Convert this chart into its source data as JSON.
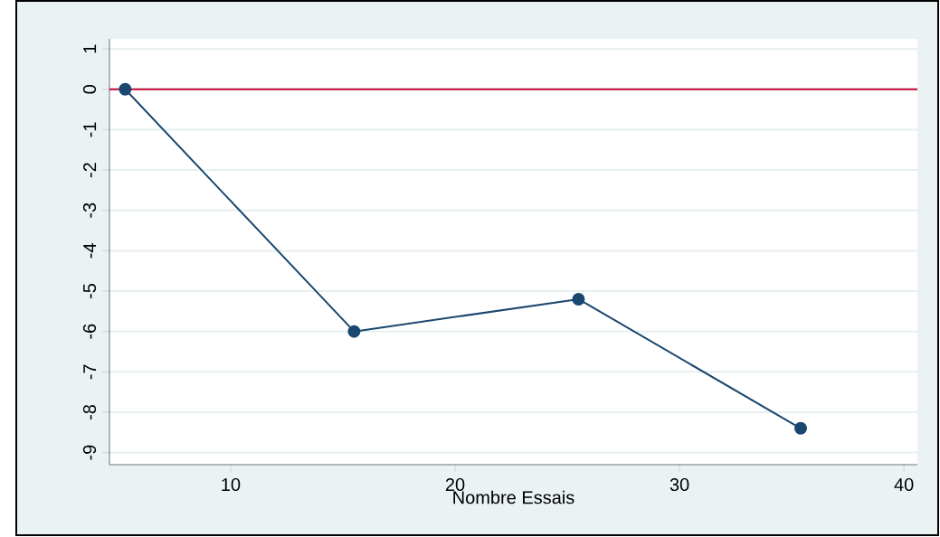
{
  "chart_data": {
    "type": "line",
    "xlabel": "Nombre Essais",
    "x": [
      5.3,
      15.5,
      25.5,
      35.4
    ],
    "series": [
      {
        "color": "#1a476f",
        "values": [
          0,
          -6.0,
          -5.2,
          -8.4
        ]
      }
    ],
    "xlim": [
      4.6,
      40.6
    ],
    "xticks": [
      10,
      20,
      30,
      40
    ],
    "ylim": [
      -9.3,
      1.25
    ],
    "yticks": [
      -9,
      -8,
      -7,
      -6,
      -5,
      -4,
      -3,
      -2,
      -1,
      0,
      1
    ],
    "grid": "y",
    "marker": "circle",
    "line_style": "solid",
    "ref_lines": [
      {
        "axis": "y",
        "value": 0,
        "color": "#c10534"
      }
    ]
  }
}
